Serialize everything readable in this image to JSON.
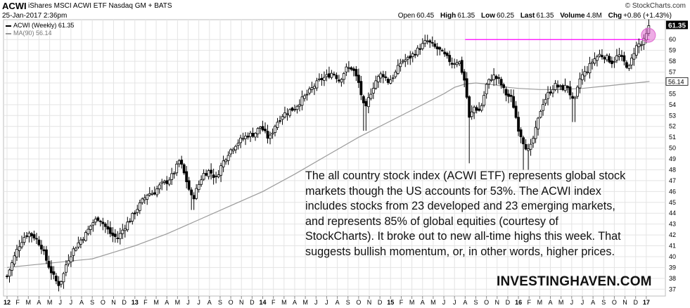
{
  "header": {
    "symbol": "ACWI",
    "description": "iShares MSCI ACWI ETF  Nasdaq GM + BATS",
    "date": "25-Jan-2017 2:36pm",
    "brand": "© StockCharts.com",
    "ohlc": [
      {
        "label": "Open",
        "value": "60.45"
      },
      {
        "label": "High",
        "value": "61.35"
      },
      {
        "label": "Low",
        "value": "60.25"
      },
      {
        "label": "Last",
        "value": "61.35"
      },
      {
        "label": "Volume",
        "value": "4.8M"
      },
      {
        "label": "Chg",
        "value": "+0.86 (+1.43%)"
      }
    ],
    "legend_price": "ACWI (Weekly) 61.35",
    "legend_ma": "MA(90) 56.14"
  },
  "annotation": {
    "lines": [
      "The all country stock index (ACWI ETF) represents global stock",
      "markets though the US accounts for 53%. The ACWI index",
      "includes stocks from 23 developed and 23 emerging markets,",
      "and represents 85% of global equities (courtesy of",
      "StockCharts). It broke out to new all-time highs this week. That",
      "suggests bullish momentum, or, in other words, higher prices."
    ]
  },
  "watermark": "INVESTINGHAVEN.COM",
  "colors": {
    "up": "#000000",
    "down": "#000000",
    "ma_line": "#9a9a9a",
    "resistance": "#ff00ff",
    "highlight_circle": "#e06ad0",
    "grid": "#e4e4e4",
    "last_price_box": "#000000"
  },
  "chart_data": {
    "type": "candlestick",
    "title": "ACWI iShares MSCI ACWI ETF",
    "ylim": [
      36.5,
      61.7
    ],
    "y_ticks": [
      37,
      38,
      39,
      40,
      41,
      42,
      43,
      44,
      45,
      46,
      47,
      48,
      49,
      50,
      51,
      52,
      53,
      54,
      55,
      56,
      57,
      58,
      59,
      60
    ],
    "x_range_months": [
      0,
      61
    ],
    "x_tick_labels": [
      {
        "m": 0,
        "label": "12",
        "bold": true
      },
      {
        "m": 1,
        "label": "F"
      },
      {
        "m": 2,
        "label": "M"
      },
      {
        "m": 3,
        "label": "A"
      },
      {
        "m": 4,
        "label": "M"
      },
      {
        "m": 5,
        "label": "J"
      },
      {
        "m": 6,
        "label": "J"
      },
      {
        "m": 7,
        "label": "A"
      },
      {
        "m": 8,
        "label": "S"
      },
      {
        "m": 9,
        "label": "O"
      },
      {
        "m": 10,
        "label": "N"
      },
      {
        "m": 11,
        "label": "D"
      },
      {
        "m": 12,
        "label": "13",
        "bold": true
      },
      {
        "m": 13,
        "label": "F"
      },
      {
        "m": 14,
        "label": "M"
      },
      {
        "m": 15,
        "label": "A"
      },
      {
        "m": 16,
        "label": "M"
      },
      {
        "m": 17,
        "label": "J"
      },
      {
        "m": 18,
        "label": "J"
      },
      {
        "m": 19,
        "label": "A"
      },
      {
        "m": 20,
        "label": "S"
      },
      {
        "m": 21,
        "label": "O"
      },
      {
        "m": 22,
        "label": "N"
      },
      {
        "m": 23,
        "label": "D"
      },
      {
        "m": 24,
        "label": "14",
        "bold": true
      },
      {
        "m": 25,
        "label": "F"
      },
      {
        "m": 26,
        "label": "M"
      },
      {
        "m": 27,
        "label": "A"
      },
      {
        "m": 28,
        "label": "M"
      },
      {
        "m": 29,
        "label": "J"
      },
      {
        "m": 30,
        "label": "J"
      },
      {
        "m": 31,
        "label": "A"
      },
      {
        "m": 32,
        "label": "S"
      },
      {
        "m": 33,
        "label": "O"
      },
      {
        "m": 34,
        "label": "N"
      },
      {
        "m": 35,
        "label": "D"
      },
      {
        "m": 36,
        "label": "15",
        "bold": true
      },
      {
        "m": 37,
        "label": "F"
      },
      {
        "m": 38,
        "label": "M"
      },
      {
        "m": 39,
        "label": "A"
      },
      {
        "m": 40,
        "label": "M"
      },
      {
        "m": 41,
        "label": "J"
      },
      {
        "m": 42,
        "label": "J"
      },
      {
        "m": 43,
        "label": "A"
      },
      {
        "m": 44,
        "label": "S"
      },
      {
        "m": 45,
        "label": "O"
      },
      {
        "m": 46,
        "label": "N"
      },
      {
        "m": 47,
        "label": "D"
      },
      {
        "m": 48,
        "label": "16",
        "bold": true
      },
      {
        "m": 49,
        "label": "F"
      },
      {
        "m": 50,
        "label": "M"
      },
      {
        "m": 51,
        "label": "A"
      },
      {
        "m": 52,
        "label": "M"
      },
      {
        "m": 53,
        "label": "J"
      },
      {
        "m": 54,
        "label": "J"
      },
      {
        "m": 55,
        "label": "A"
      },
      {
        "m": 56,
        "label": "S"
      },
      {
        "m": 57,
        "label": "O"
      },
      {
        "m": 58,
        "label": "N"
      },
      {
        "m": 59,
        "label": "D"
      },
      {
        "m": 60,
        "label": "17",
        "bold": true
      }
    ],
    "price_path": [
      [
        0.0,
        38.2
      ],
      [
        0.5,
        39.5
      ],
      [
        1.0,
        40.8
      ],
      [
        1.5,
        41.7
      ],
      [
        2.0,
        42.2
      ],
      [
        2.6,
        41.8
      ],
      [
        3.2,
        41.0
      ],
      [
        3.8,
        39.4
      ],
      [
        4.3,
        38.3
      ],
      [
        4.8,
        37.4
      ],
      [
        5.2,
        38.0
      ],
      [
        5.6,
        39.5
      ],
      [
        6.2,
        40.6
      ],
      [
        6.8,
        41.4
      ],
      [
        7.4,
        42.1
      ],
      [
        8.0,
        43.1
      ],
      [
        8.6,
        43.6
      ],
      [
        9.2,
        42.8
      ],
      [
        9.8,
        42.0
      ],
      [
        10.4,
        41.7
      ],
      [
        11.0,
        42.7
      ],
      [
        11.6,
        43.5
      ],
      [
        12.0,
        44.1
      ],
      [
        12.6,
        45.0
      ],
      [
        13.2,
        45.8
      ],
      [
        13.8,
        45.9
      ],
      [
        14.4,
        46.6
      ],
      [
        15.0,
        46.9
      ],
      [
        15.6,
        47.6
      ],
      [
        16.2,
        48.9
      ],
      [
        16.8,
        47.1
      ],
      [
        17.4,
        45.2
      ],
      [
        17.8,
        46.2
      ],
      [
        18.4,
        47.6
      ],
      [
        19.0,
        47.9
      ],
      [
        19.6,
        47.2
      ],
      [
        20.2,
        48.6
      ],
      [
        20.8,
        49.6
      ],
      [
        21.4,
        50.3
      ],
      [
        22.0,
        50.8
      ],
      [
        22.6,
        51.2
      ],
      [
        23.2,
        51.3
      ],
      [
        23.8,
        52.0
      ],
      [
        24.2,
        51.4
      ],
      [
        24.6,
        50.8
      ],
      [
        25.2,
        52.2
      ],
      [
        25.8,
        53.0
      ],
      [
        26.4,
        53.4
      ],
      [
        27.0,
        53.7
      ],
      [
        27.6,
        54.4
      ],
      [
        28.2,
        55.0
      ],
      [
        28.8,
        55.7
      ],
      [
        29.4,
        56.3
      ],
      [
        30.0,
        56.6
      ],
      [
        30.6,
        57.0
      ],
      [
        31.2,
        56.2
      ],
      [
        31.8,
        57.3
      ],
      [
        32.4,
        57.4
      ],
      [
        33.0,
        56.0
      ],
      [
        33.6,
        53.3
      ],
      [
        34.0,
        54.8
      ],
      [
        34.6,
        56.2
      ],
      [
        35.2,
        56.9
      ],
      [
        35.8,
        56.1
      ],
      [
        36.4,
        56.8
      ],
      [
        37.0,
        58.0
      ],
      [
        37.6,
        58.2
      ],
      [
        38.2,
        58.7
      ],
      [
        38.8,
        59.3
      ],
      [
        39.4,
        59.9
      ],
      [
        40.0,
        59.4
      ],
      [
        40.6,
        59.0
      ],
      [
        41.2,
        58.4
      ],
      [
        41.8,
        57.8
      ],
      [
        42.4,
        58.1
      ],
      [
        43.0,
        56.0
      ],
      [
        43.4,
        52.6
      ],
      [
        43.8,
        53.8
      ],
      [
        44.4,
        53.4
      ],
      [
        45.0,
        55.8
      ],
      [
        45.6,
        56.7
      ],
      [
        46.2,
        56.2
      ],
      [
        46.8,
        55.0
      ],
      [
        47.4,
        54.5
      ],
      [
        48.0,
        51.8
      ],
      [
        48.5,
        50.5
      ],
      [
        49.0,
        49.6
      ],
      [
        49.6,
        51.6
      ],
      [
        50.2,
        54.0
      ],
      [
        50.8,
        55.0
      ],
      [
        51.4,
        55.8
      ],
      [
        52.0,
        55.5
      ],
      [
        52.6,
        55.7
      ],
      [
        53.2,
        54.0
      ],
      [
        53.8,
        56.5
      ],
      [
        54.4,
        57.1
      ],
      [
        55.0,
        58.1
      ],
      [
        55.6,
        58.6
      ],
      [
        56.2,
        58.4
      ],
      [
        56.8,
        57.9
      ],
      [
        57.4,
        58.6
      ],
      [
        58.0,
        57.8
      ],
      [
        58.4,
        57.4
      ],
      [
        58.8,
        58.8
      ],
      [
        59.2,
        59.6
      ],
      [
        59.6,
        59.5
      ],
      [
        60.0,
        60.4
      ],
      [
        60.3,
        61.35
      ]
    ],
    "low_spikes": [
      {
        "m": 4.8,
        "low": 36.8
      },
      {
        "m": 17.4,
        "low": 44.3
      },
      {
        "m": 33.6,
        "low": 51.6
      },
      {
        "m": 43.4,
        "low": 48.6
      },
      {
        "m": 48.5,
        "low": 48.0
      },
      {
        "m": 49.0,
        "low": 48.0
      },
      {
        "m": 53.2,
        "low": 52.4
      }
    ],
    "ma_series": {
      "name": "MA(90) 56.14",
      "points": [
        [
          0.0,
          39.0
        ],
        [
          2.0,
          39.2
        ],
        [
          5.0,
          39.5
        ],
        [
          8.0,
          39.8
        ],
        [
          10.0,
          40.4
        ],
        [
          12.0,
          41.0
        ],
        [
          15.0,
          42.1
        ],
        [
          18.0,
          43.4
        ],
        [
          21.0,
          44.7
        ],
        [
          24.0,
          46.0
        ],
        [
          27.0,
          47.6
        ],
        [
          30.0,
          49.3
        ],
        [
          33.0,
          51.0
        ],
        [
          36.0,
          52.5
        ],
        [
          39.0,
          54.0
        ],
        [
          41.0,
          55.0
        ],
        [
          42.0,
          55.6
        ],
        [
          43.0,
          55.9
        ],
        [
          44.0,
          56.0
        ],
        [
          45.0,
          55.9
        ],
        [
          46.0,
          55.8
        ],
        [
          47.0,
          55.6
        ],
        [
          48.0,
          55.5
        ],
        [
          50.0,
          55.4
        ],
        [
          52.0,
          55.4
        ],
        [
          54.0,
          55.5
        ],
        [
          56.0,
          55.7
        ],
        [
          58.0,
          55.9
        ],
        [
          60.0,
          56.1
        ],
        [
          60.3,
          56.14
        ]
      ]
    },
    "resistance_line": {
      "y": 60.0,
      "from_m": 43.0,
      "to_m": 60.3
    },
    "breakout_highlight": {
      "m": 60.2,
      "y": 60.4
    },
    "last_price_label": "61.35",
    "ma_value_label": "56.14",
    "grid": true
  }
}
